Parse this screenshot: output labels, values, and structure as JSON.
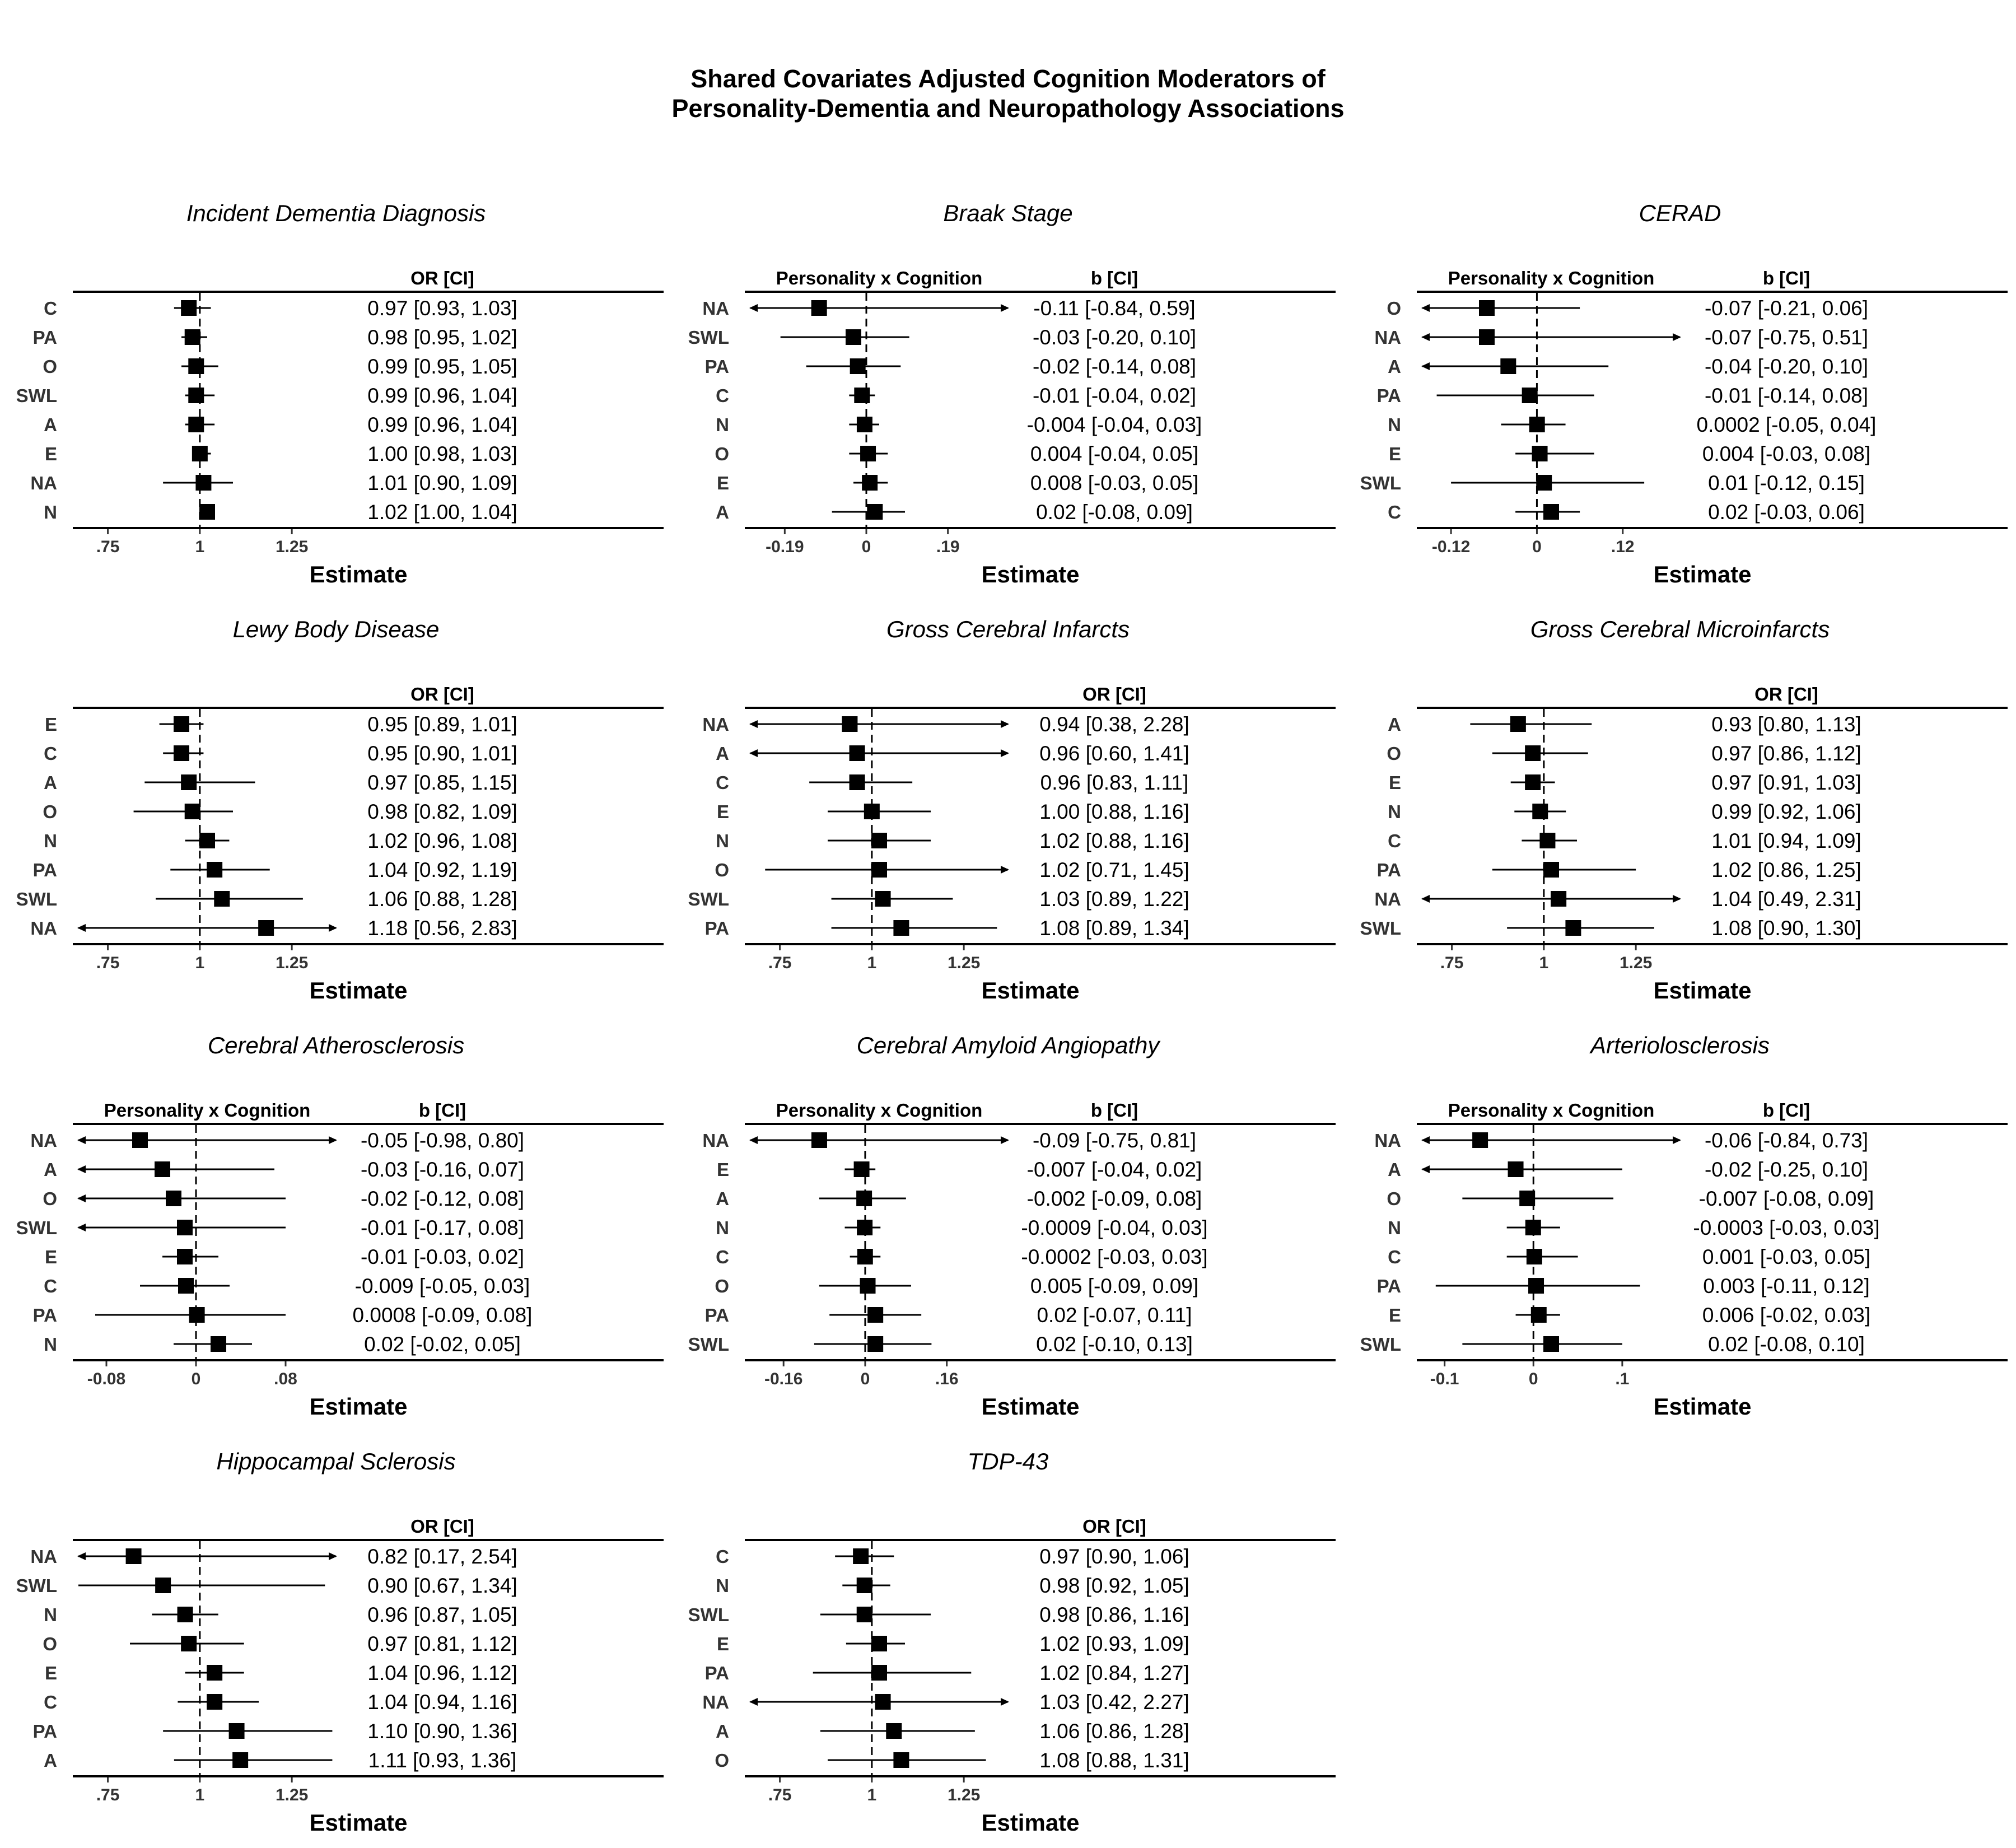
{
  "title_line1": "Shared Covariates Adjusted Cognition Moderators of",
  "title_line2": "Personality-Dementia and Neuropathology Associations",
  "chart_data": [
    {
      "type": "forest",
      "title": "Incident Dementia Diagnosis",
      "left_header": "",
      "right_header": "OR [CI]",
      "xlabel": "Estimate",
      "ref": 1,
      "xlim": [
        0.67,
        1.37
      ],
      "ticks": [
        {
          "v": 0.75,
          "label": ".75"
        },
        {
          "v": 1,
          "label": "1"
        },
        {
          "v": 1.25,
          "label": "1.25"
        }
      ],
      "rows": [
        {
          "label": "C",
          "est": 0.97,
          "lo": 0.93,
          "hi": 1.03,
          "text": "0.97 [0.93, 1.03]"
        },
        {
          "label": "PA",
          "est": 0.98,
          "lo": 0.95,
          "hi": 1.02,
          "text": "0.98 [0.95, 1.02]"
        },
        {
          "label": "O",
          "est": 0.99,
          "lo": 0.95,
          "hi": 1.05,
          "text": "0.99 [0.95, 1.05]"
        },
        {
          "label": "SWL",
          "est": 0.99,
          "lo": 0.96,
          "hi": 1.04,
          "text": "0.99 [0.96, 1.04]"
        },
        {
          "label": "A",
          "est": 0.99,
          "lo": 0.96,
          "hi": 1.04,
          "text": "0.99 [0.96, 1.04]"
        },
        {
          "label": "E",
          "est": 1.0,
          "lo": 0.98,
          "hi": 1.03,
          "text": "1.00 [0.98, 1.03]"
        },
        {
          "label": "NA",
          "est": 1.01,
          "lo": 0.9,
          "hi": 1.09,
          "text": "1.01 [0.90, 1.09]"
        },
        {
          "label": "N",
          "est": 1.02,
          "lo": 1.0,
          "hi": 1.04,
          "text": "1.02 [1.00, 1.04]"
        }
      ]
    },
    {
      "type": "forest",
      "title": "Braak Stage",
      "left_header": "Personality x Cognition",
      "right_header": "b [CI]",
      "xlabel": "Estimate",
      "ref": 0,
      "xlim": [
        -0.27,
        0.33
      ],
      "ticks": [
        {
          "v": -0.19,
          "label": "-0.19"
        },
        {
          "v": 0,
          "label": "0"
        },
        {
          "v": 0.19,
          "label": ".19"
        }
      ],
      "rows": [
        {
          "label": "NA",
          "est": -0.11,
          "lo": -0.84,
          "hi": 0.59,
          "text": "-0.11 [-0.84, 0.59]"
        },
        {
          "label": "SWL",
          "est": -0.03,
          "lo": -0.2,
          "hi": 0.1,
          "text": "-0.03 [-0.20, 0.10]"
        },
        {
          "label": "PA",
          "est": -0.02,
          "lo": -0.14,
          "hi": 0.08,
          "text": "-0.02 [-0.14, 0.08]"
        },
        {
          "label": "C",
          "est": -0.01,
          "lo": -0.04,
          "hi": 0.02,
          "text": "-0.01 [-0.04, 0.02]"
        },
        {
          "label": "N",
          "est": -0.004,
          "lo": -0.04,
          "hi": 0.03,
          "text": "-0.004 [-0.04, 0.03]"
        },
        {
          "label": "O",
          "est": 0.004,
          "lo": -0.04,
          "hi": 0.05,
          "text": "0.004 [-0.04, 0.05]"
        },
        {
          "label": "E",
          "est": 0.008,
          "lo": -0.03,
          "hi": 0.05,
          "text": "0.008 [-0.03, 0.05]"
        },
        {
          "label": "A",
          "est": 0.02,
          "lo": -0.08,
          "hi": 0.09,
          "text": "0.02 [-0.08, 0.09]"
        }
      ]
    },
    {
      "type": "forest",
      "title": "CERAD",
      "left_header": "Personality x Cognition",
      "right_header": "b [CI]",
      "xlabel": "Estimate",
      "ref": 0,
      "xlim": [
        -0.16,
        0.2
      ],
      "ticks": [
        {
          "v": -0.12,
          "label": "-0.12"
        },
        {
          "v": 0,
          "label": "0"
        },
        {
          "v": 0.12,
          "label": ".12"
        }
      ],
      "rows": [
        {
          "label": "O",
          "est": -0.07,
          "lo": -0.21,
          "hi": 0.06,
          "text": "-0.07 [-0.21, 0.06]"
        },
        {
          "label": "NA",
          "est": -0.07,
          "lo": -0.75,
          "hi": 0.51,
          "text": "-0.07 [-0.75, 0.51]"
        },
        {
          "label": "A",
          "est": -0.04,
          "lo": -0.2,
          "hi": 0.1,
          "text": "-0.04 [-0.20, 0.10]"
        },
        {
          "label": "PA",
          "est": -0.01,
          "lo": -0.14,
          "hi": 0.08,
          "text": "-0.01 [-0.14, 0.08]"
        },
        {
          "label": "N",
          "est": 0.0002,
          "lo": -0.05,
          "hi": 0.04,
          "text": "0.0002 [-0.05, 0.04]"
        },
        {
          "label": "E",
          "est": 0.004,
          "lo": -0.03,
          "hi": 0.08,
          "text": "0.004 [-0.03, 0.08]"
        },
        {
          "label": "SWL",
          "est": 0.01,
          "lo": -0.12,
          "hi": 0.15,
          "text": "0.01 [-0.12, 0.15]"
        },
        {
          "label": "C",
          "est": 0.02,
          "lo": -0.03,
          "hi": 0.06,
          "text": "0.02 [-0.03, 0.06]"
        }
      ]
    },
    {
      "type": "forest",
      "title": "Lewy Body Disease",
      "left_header": "",
      "right_header": "OR [CI]",
      "xlabel": "Estimate",
      "ref": 1,
      "xlim": [
        0.67,
        1.37
      ],
      "ticks": [
        {
          "v": 0.75,
          "label": ".75"
        },
        {
          "v": 1,
          "label": "1"
        },
        {
          "v": 1.25,
          "label": "1.25"
        }
      ],
      "rows": [
        {
          "label": "E",
          "est": 0.95,
          "lo": 0.89,
          "hi": 1.01,
          "text": "0.95 [0.89, 1.01]"
        },
        {
          "label": "C",
          "est": 0.95,
          "lo": 0.9,
          "hi": 1.01,
          "text": "0.95 [0.90, 1.01]"
        },
        {
          "label": "A",
          "est": 0.97,
          "lo": 0.85,
          "hi": 1.15,
          "text": "0.97 [0.85, 1.15]"
        },
        {
          "label": "O",
          "est": 0.98,
          "lo": 0.82,
          "hi": 1.09,
          "text": "0.98 [0.82, 1.09]"
        },
        {
          "label": "N",
          "est": 1.02,
          "lo": 0.96,
          "hi": 1.08,
          "text": "1.02 [0.96, 1.08]"
        },
        {
          "label": "PA",
          "est": 1.04,
          "lo": 0.92,
          "hi": 1.19,
          "text": "1.04 [0.92, 1.19]"
        },
        {
          "label": "SWL",
          "est": 1.06,
          "lo": 0.88,
          "hi": 1.28,
          "text": "1.06 [0.88, 1.28]"
        },
        {
          "label": "NA",
          "est": 1.18,
          "lo": 0.56,
          "hi": 2.83,
          "text": "1.18 [0.56, 2.83]"
        }
      ]
    },
    {
      "type": "forest",
      "title": "Gross Cerebral Infarcts",
      "left_header": "",
      "right_header": "OR [CI]",
      "xlabel": "Estimate",
      "ref": 1,
      "xlim": [
        0.67,
        1.37
      ],
      "ticks": [
        {
          "v": 0.75,
          "label": ".75"
        },
        {
          "v": 1,
          "label": "1"
        },
        {
          "v": 1.25,
          "label": "1.25"
        }
      ],
      "rows": [
        {
          "label": "NA",
          "est": 0.94,
          "lo": 0.38,
          "hi": 2.28,
          "text": "0.94 [0.38, 2.28]"
        },
        {
          "label": "A",
          "est": 0.96,
          "lo": 0.6,
          "hi": 1.41,
          "text": "0.96 [0.60, 1.41]"
        },
        {
          "label": "C",
          "est": 0.96,
          "lo": 0.83,
          "hi": 1.11,
          "text": "0.96 [0.83, 1.11]"
        },
        {
          "label": "E",
          "est": 1.0,
          "lo": 0.88,
          "hi": 1.16,
          "text": "1.00 [0.88, 1.16]"
        },
        {
          "label": "N",
          "est": 1.02,
          "lo": 0.88,
          "hi": 1.16,
          "text": "1.02 [0.88, 1.16]"
        },
        {
          "label": "O",
          "est": 1.02,
          "lo": 0.71,
          "hi": 1.45,
          "text": "1.02 [0.71, 1.45]"
        },
        {
          "label": "SWL",
          "est": 1.03,
          "lo": 0.89,
          "hi": 1.22,
          "text": "1.03 [0.89, 1.22]"
        },
        {
          "label": "PA",
          "est": 1.08,
          "lo": 0.89,
          "hi": 1.34,
          "text": "1.08 [0.89, 1.34]"
        }
      ]
    },
    {
      "type": "forest",
      "title": "Gross Cerebral Microinfarcts",
      "left_header": "",
      "right_header": "OR [CI]",
      "xlabel": "Estimate",
      "ref": 1,
      "xlim": [
        0.67,
        1.37
      ],
      "ticks": [
        {
          "v": 0.75,
          "label": ".75"
        },
        {
          "v": 1,
          "label": "1"
        },
        {
          "v": 1.25,
          "label": "1.25"
        }
      ],
      "rows": [
        {
          "label": "A",
          "est": 0.93,
          "lo": 0.8,
          "hi": 1.13,
          "text": "0.93 [0.80, 1.13]"
        },
        {
          "label": "O",
          "est": 0.97,
          "lo": 0.86,
          "hi": 1.12,
          "text": "0.97 [0.86, 1.12]"
        },
        {
          "label": "E",
          "est": 0.97,
          "lo": 0.91,
          "hi": 1.03,
          "text": "0.97 [0.91, 1.03]"
        },
        {
          "label": "N",
          "est": 0.99,
          "lo": 0.92,
          "hi": 1.06,
          "text": "0.99 [0.92, 1.06]"
        },
        {
          "label": "C",
          "est": 1.01,
          "lo": 0.94,
          "hi": 1.09,
          "text": "1.01 [0.94, 1.09]"
        },
        {
          "label": "PA",
          "est": 1.02,
          "lo": 0.86,
          "hi": 1.25,
          "text": "1.02 [0.86, 1.25]"
        },
        {
          "label": "NA",
          "est": 1.04,
          "lo": 0.49,
          "hi": 2.31,
          "text": "1.04 [0.49, 2.31]"
        },
        {
          "label": "SWL",
          "est": 1.08,
          "lo": 0.9,
          "hi": 1.3,
          "text": "1.08 [0.90, 1.30]"
        }
      ]
    },
    {
      "type": "forest",
      "title": "Cerebral Atherosclerosis",
      "left_header": "Personality x Cognition",
      "right_header": "b [CI]",
      "xlabel": "Estimate",
      "ref": 0,
      "xlim": [
        -0.105,
        0.125
      ],
      "ticks": [
        {
          "v": -0.08,
          "label": "-0.08"
        },
        {
          "v": 0,
          "label": "0"
        },
        {
          "v": 0.08,
          "label": ".08"
        }
      ],
      "rows": [
        {
          "label": "NA",
          "est": -0.05,
          "lo": -0.98,
          "hi": 0.8,
          "text": "-0.05 [-0.98, 0.80]"
        },
        {
          "label": "A",
          "est": -0.03,
          "lo": -0.16,
          "hi": 0.07,
          "text": "-0.03 [-0.16, 0.07]"
        },
        {
          "label": "O",
          "est": -0.02,
          "lo": -0.12,
          "hi": 0.08,
          "text": "-0.02 [-0.12, 0.08]"
        },
        {
          "label": "SWL",
          "est": -0.01,
          "lo": -0.17,
          "hi": 0.08,
          "text": "-0.01 [-0.17, 0.08]"
        },
        {
          "label": "E",
          "est": -0.01,
          "lo": -0.03,
          "hi": 0.02,
          "text": "-0.01 [-0.03, 0.02]"
        },
        {
          "label": "C",
          "est": -0.009,
          "lo": -0.05,
          "hi": 0.03,
          "text": "-0.009 [-0.05, 0.03]"
        },
        {
          "label": "PA",
          "est": 0.0008,
          "lo": -0.09,
          "hi": 0.08,
          "text": "0.0008 [-0.09, 0.08]"
        },
        {
          "label": "N",
          "est": 0.02,
          "lo": -0.02,
          "hi": 0.05,
          "text": "0.02 [-0.02, 0.05]"
        }
      ]
    },
    {
      "type": "forest",
      "title": "Cerebral Amyloid Angiopathy",
      "left_header": "Personality x Cognition",
      "right_header": "b [CI]",
      "xlabel": "Estimate",
      "ref": 0,
      "xlim": [
        -0.225,
        0.28
      ],
      "ticks": [
        {
          "v": -0.16,
          "label": "-0.16"
        },
        {
          "v": 0,
          "label": "0"
        },
        {
          "v": 0.16,
          "label": ".16"
        }
      ],
      "rows": [
        {
          "label": "NA",
          "est": -0.09,
          "lo": -0.75,
          "hi": 0.81,
          "text": "-0.09 [-0.75, 0.81]"
        },
        {
          "label": "E",
          "est": -0.007,
          "lo": -0.04,
          "hi": 0.02,
          "text": "-0.007 [-0.04, 0.02]"
        },
        {
          "label": "A",
          "est": -0.002,
          "lo": -0.09,
          "hi": 0.08,
          "text": "-0.002 [-0.09, 0.08]"
        },
        {
          "label": "N",
          "est": -0.0009,
          "lo": -0.04,
          "hi": 0.03,
          "text": "-0.0009 [-0.04, 0.03]"
        },
        {
          "label": "C",
          "est": -0.0002,
          "lo": -0.03,
          "hi": 0.03,
          "text": "-0.0002 [-0.03, 0.03]"
        },
        {
          "label": "O",
          "est": 0.005,
          "lo": -0.09,
          "hi": 0.09,
          "text": "0.005 [-0.09, 0.09]"
        },
        {
          "label": "PA",
          "est": 0.02,
          "lo": -0.07,
          "hi": 0.11,
          "text": "0.02 [-0.07, 0.11]"
        },
        {
          "label": "SWL",
          "est": 0.02,
          "lo": -0.1,
          "hi": 0.13,
          "text": "0.02 [-0.10, 0.13]"
        }
      ]
    },
    {
      "type": "forest",
      "title": "Arteriolosclerosis",
      "left_header": "Personality x Cognition",
      "right_header": "b [CI]",
      "xlabel": "Estimate",
      "ref": 0,
      "xlim": [
        -0.125,
        0.165
      ],
      "ticks": [
        {
          "v": -0.1,
          "label": "-0.1"
        },
        {
          "v": 0,
          "label": "0"
        },
        {
          "v": 0.1,
          "label": ".1"
        }
      ],
      "rows": [
        {
          "label": "NA",
          "est": -0.06,
          "lo": -0.84,
          "hi": 0.73,
          "text": "-0.06 [-0.84, 0.73]"
        },
        {
          "label": "A",
          "est": -0.02,
          "lo": -0.25,
          "hi": 0.1,
          "text": "-0.02 [-0.25, 0.10]"
        },
        {
          "label": "O",
          "est": -0.007,
          "lo": -0.08,
          "hi": 0.09,
          "text": "-0.007 [-0.08, 0.09]"
        },
        {
          "label": "N",
          "est": -0.0003,
          "lo": -0.03,
          "hi": 0.03,
          "text": "-0.0003 [-0.03, 0.03]"
        },
        {
          "label": "C",
          "est": 0.001,
          "lo": -0.03,
          "hi": 0.05,
          "text": "0.001 [-0.03, 0.05]"
        },
        {
          "label": "PA",
          "est": 0.003,
          "lo": -0.11,
          "hi": 0.12,
          "text": "0.003 [-0.11, 0.12]"
        },
        {
          "label": "E",
          "est": 0.006,
          "lo": -0.02,
          "hi": 0.03,
          "text": "0.006 [-0.02, 0.03]"
        },
        {
          "label": "SWL",
          "est": 0.02,
          "lo": -0.08,
          "hi": 0.1,
          "text": "0.02 [-0.08, 0.10]"
        }
      ]
    },
    {
      "type": "forest",
      "title": "Hippocampal Sclerosis",
      "left_header": "",
      "right_header": "OR [CI]",
      "xlabel": "Estimate",
      "ref": 1,
      "xlim": [
        0.67,
        1.37
      ],
      "ticks": [
        {
          "v": 0.75,
          "label": ".75"
        },
        {
          "v": 1,
          "label": "1"
        },
        {
          "v": 1.25,
          "label": "1.25"
        }
      ],
      "rows": [
        {
          "label": "NA",
          "est": 0.82,
          "lo": 0.17,
          "hi": 2.54,
          "text": "0.82 [0.17, 2.54]"
        },
        {
          "label": "SWL",
          "est": 0.9,
          "lo": 0.67,
          "hi": 1.34,
          "text": "0.90 [0.67, 1.34]"
        },
        {
          "label": "N",
          "est": 0.96,
          "lo": 0.87,
          "hi": 1.05,
          "text": "0.96 [0.87, 1.05]"
        },
        {
          "label": "O",
          "est": 0.97,
          "lo": 0.81,
          "hi": 1.12,
          "text": "0.97 [0.81, 1.12]"
        },
        {
          "label": "E",
          "est": 1.04,
          "lo": 0.96,
          "hi": 1.12,
          "text": "1.04 [0.96, 1.12]"
        },
        {
          "label": "C",
          "est": 1.04,
          "lo": 0.94,
          "hi": 1.16,
          "text": "1.04 [0.94, 1.16]"
        },
        {
          "label": "PA",
          "est": 1.1,
          "lo": 0.9,
          "hi": 1.36,
          "text": "1.10 [0.90, 1.36]"
        },
        {
          "label": "A",
          "est": 1.11,
          "lo": 0.93,
          "hi": 1.36,
          "text": "1.11 [0.93, 1.36]"
        }
      ]
    },
    {
      "type": "forest",
      "title": "TDP-43",
      "left_header": "",
      "right_header": "OR [CI]",
      "xlabel": "Estimate",
      "ref": 1,
      "xlim": [
        0.67,
        1.37
      ],
      "ticks": [
        {
          "v": 0.75,
          "label": ".75"
        },
        {
          "v": 1,
          "label": "1"
        },
        {
          "v": 1.25,
          "label": "1.25"
        }
      ],
      "rows": [
        {
          "label": "C",
          "est": 0.97,
          "lo": 0.9,
          "hi": 1.06,
          "text": "0.97 [0.90, 1.06]"
        },
        {
          "label": "N",
          "est": 0.98,
          "lo": 0.92,
          "hi": 1.05,
          "text": "0.98 [0.92, 1.05]"
        },
        {
          "label": "SWL",
          "est": 0.98,
          "lo": 0.86,
          "hi": 1.16,
          "text": "0.98 [0.86, 1.16]"
        },
        {
          "label": "E",
          "est": 1.02,
          "lo": 0.93,
          "hi": 1.09,
          "text": "1.02 [0.93, 1.09]"
        },
        {
          "label": "PA",
          "est": 1.02,
          "lo": 0.84,
          "hi": 1.27,
          "text": "1.02 [0.84, 1.27]"
        },
        {
          "label": "NA",
          "est": 1.03,
          "lo": 0.42,
          "hi": 2.27,
          "text": "1.03 [0.42, 2.27]"
        },
        {
          "label": "A",
          "est": 1.06,
          "lo": 0.86,
          "hi": 1.28,
          "text": "1.06 [0.86, 1.28]"
        },
        {
          "label": "O",
          "est": 1.08,
          "lo": 0.88,
          "hi": 1.31,
          "text": "1.08 [0.88, 1.31]"
        }
      ]
    }
  ]
}
